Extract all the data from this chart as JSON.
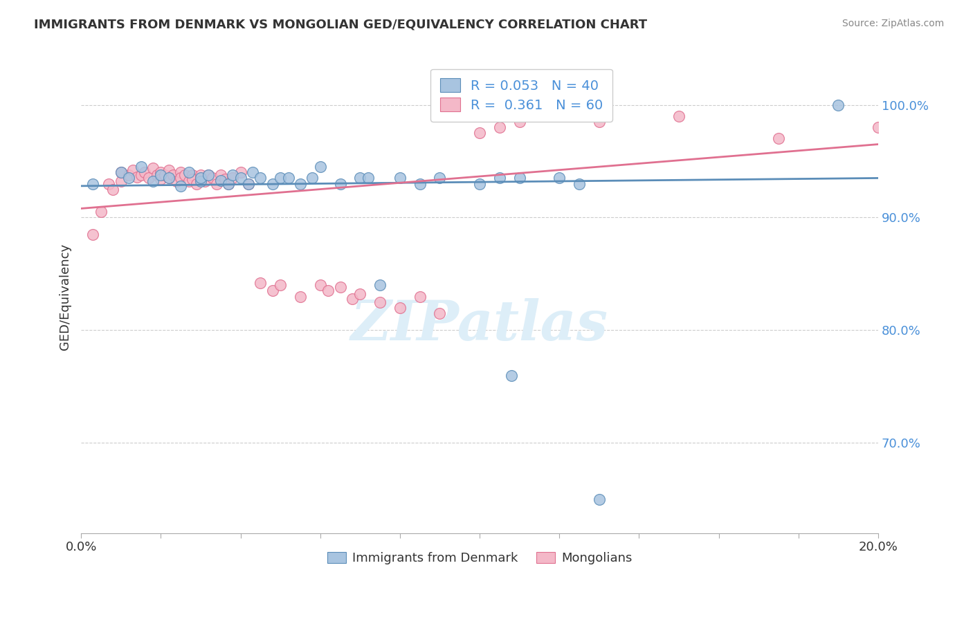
{
  "title": "IMMIGRANTS FROM DENMARK VS MONGOLIAN GED/EQUIVALENCY CORRELATION CHART",
  "source_text": "Source: ZipAtlas.com",
  "ylabel": "GED/Equivalency",
  "ytick_labels": [
    "70.0%",
    "80.0%",
    "90.0%",
    "100.0%"
  ],
  "ytick_values": [
    0.7,
    0.8,
    0.9,
    1.0
  ],
  "xmin": 0.0,
  "xmax": 0.2,
  "ymin": 0.62,
  "ymax": 1.04,
  "legend_entry1_label": "R = 0.053   N = 40",
  "legend_entry2_label": "R =  0.361   N = 60",
  "legend1_color": "#a8c4e0",
  "legend2_color": "#f4b8c8",
  "scatter_blue_color": "#a8c4e0",
  "scatter_pink_color": "#f4b8c8",
  "line_blue_color": "#5b8db8",
  "line_pink_color": "#e07090",
  "watermark_text": "ZIPatlas",
  "watermark_color": "#d0e8f8",
  "blue_scatter_x": [
    0.003,
    0.01,
    0.012,
    0.015,
    0.018,
    0.02,
    0.022,
    0.025,
    0.027,
    0.03,
    0.03,
    0.032,
    0.035,
    0.037,
    0.038,
    0.04,
    0.042,
    0.043,
    0.045,
    0.048,
    0.05,
    0.052,
    0.055,
    0.058,
    0.06,
    0.065,
    0.07,
    0.072,
    0.075,
    0.08,
    0.085,
    0.09,
    0.1,
    0.105,
    0.108,
    0.11,
    0.12,
    0.125,
    0.13,
    0.19
  ],
  "blue_scatter_y": [
    0.93,
    0.94,
    0.935,
    0.945,
    0.932,
    0.938,
    0.935,
    0.928,
    0.94,
    0.932,
    0.935,
    0.938,
    0.933,
    0.93,
    0.938,
    0.935,
    0.93,
    0.94,
    0.935,
    0.93,
    0.935,
    0.935,
    0.93,
    0.935,
    0.945,
    0.93,
    0.935,
    0.935,
    0.84,
    0.935,
    0.93,
    0.935,
    0.93,
    0.935,
    0.76,
    0.935,
    0.935,
    0.93,
    0.65,
    1.0
  ],
  "pink_scatter_x": [
    0.003,
    0.005,
    0.007,
    0.008,
    0.01,
    0.01,
    0.012,
    0.013,
    0.014,
    0.015,
    0.016,
    0.017,
    0.018,
    0.019,
    0.02,
    0.02,
    0.021,
    0.022,
    0.022,
    0.023,
    0.024,
    0.025,
    0.025,
    0.026,
    0.027,
    0.028,
    0.028,
    0.029,
    0.03,
    0.03,
    0.031,
    0.032,
    0.033,
    0.034,
    0.035,
    0.036,
    0.037,
    0.038,
    0.04,
    0.042,
    0.045,
    0.048,
    0.05,
    0.055,
    0.06,
    0.062,
    0.065,
    0.068,
    0.07,
    0.075,
    0.08,
    0.085,
    0.09,
    0.1,
    0.105,
    0.11,
    0.13,
    0.15,
    0.175,
    0.2
  ],
  "pink_scatter_y": [
    0.885,
    0.905,
    0.93,
    0.925,
    0.932,
    0.94,
    0.938,
    0.942,
    0.936,
    0.938,
    0.94,
    0.935,
    0.944,
    0.938,
    0.94,
    0.934,
    0.938,
    0.935,
    0.942,
    0.938,
    0.932,
    0.94,
    0.935,
    0.938,
    0.932,
    0.938,
    0.934,
    0.93,
    0.935,
    0.938,
    0.932,
    0.938,
    0.935,
    0.93,
    0.938,
    0.934,
    0.93,
    0.935,
    0.94,
    0.93,
    0.842,
    0.835,
    0.84,
    0.83,
    0.84,
    0.835,
    0.838,
    0.828,
    0.832,
    0.825,
    0.82,
    0.83,
    0.815,
    0.975,
    0.98,
    0.985,
    0.985,
    0.99,
    0.97,
    0.98
  ],
  "legend_bottom_label1": "Immigrants from Denmark",
  "legend_bottom_label2": "Mongolians",
  "xtick_positions": [
    0.0,
    0.02,
    0.04,
    0.06,
    0.08,
    0.1,
    0.12,
    0.14,
    0.16,
    0.18,
    0.2
  ]
}
